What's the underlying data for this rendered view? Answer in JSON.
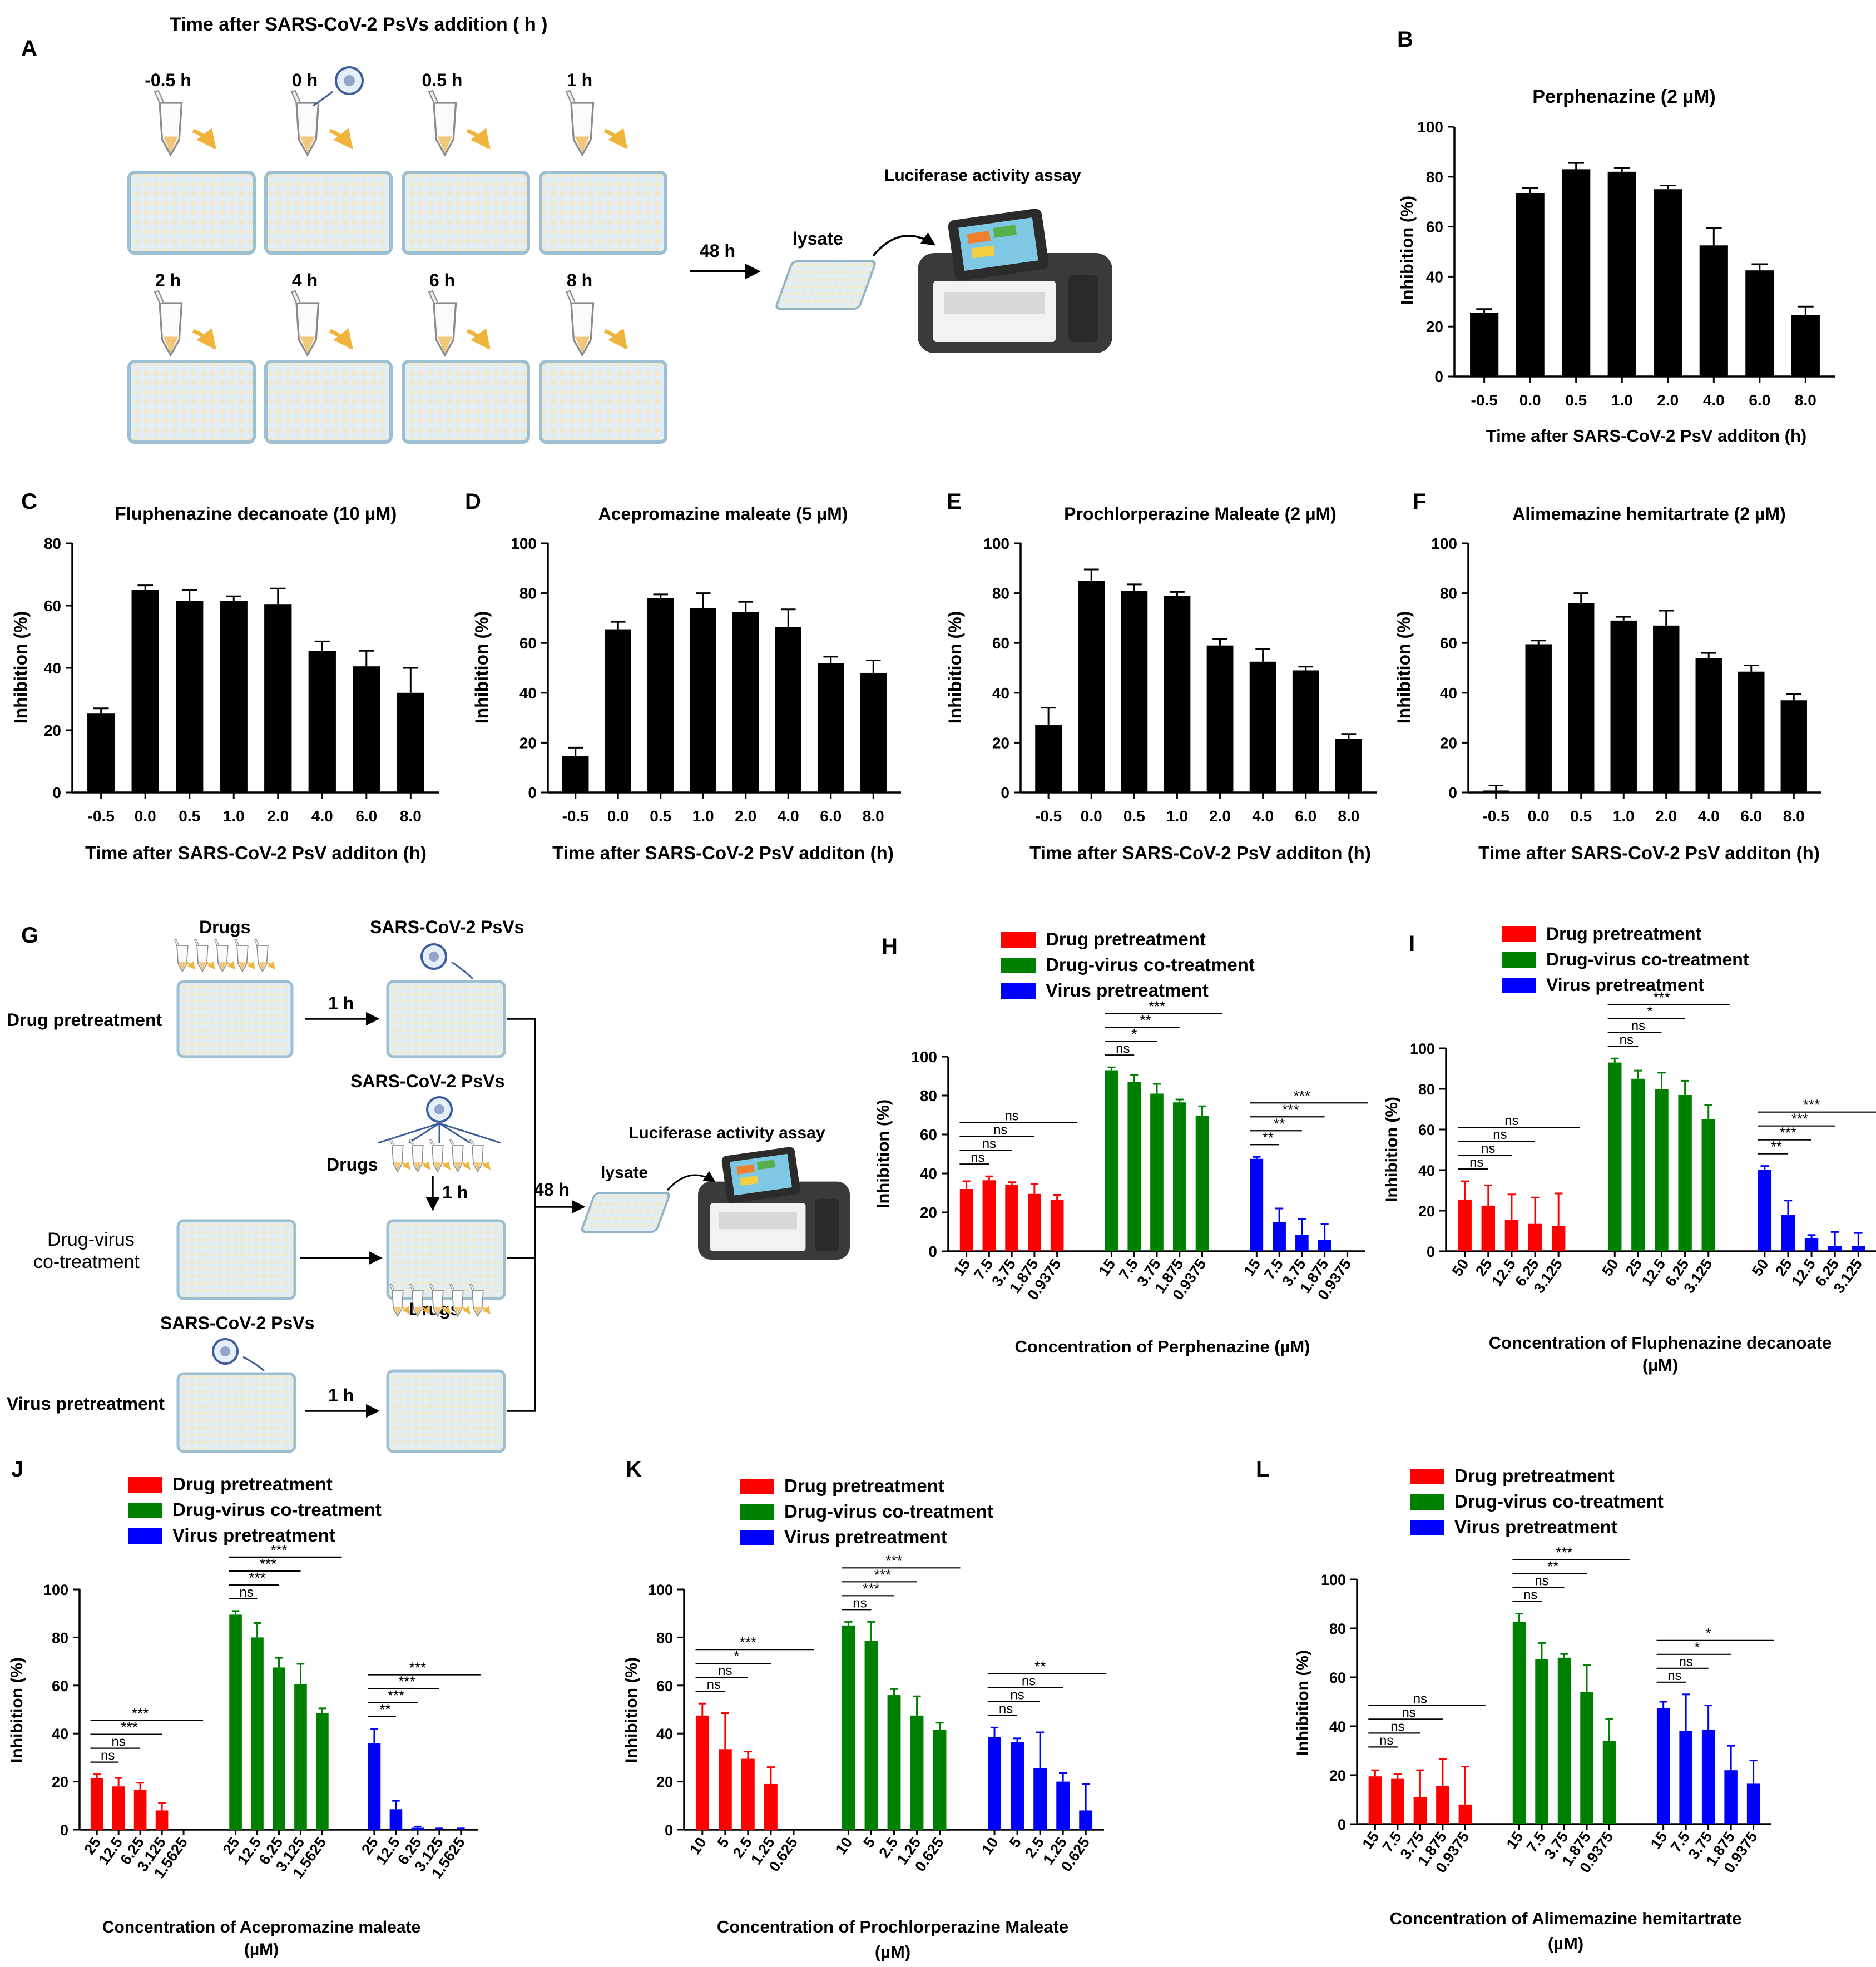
{
  "panel_letters": {
    "A": "A",
    "B": "B",
    "C": "C",
    "D": "D",
    "E": "E",
    "F": "F",
    "G": "G",
    "H": "H",
    "I": "I",
    "J": "J",
    "K": "K",
    "L": "L"
  },
  "schematic_a": {
    "title": "Time after SARS-CoV-2 PsVs addition ( h )",
    "time_labels": [
      "-0.5 h",
      "0 h",
      "0.5 h",
      "1 h",
      "2 h",
      "4 h",
      "6 h",
      "8 h"
    ],
    "arrow_label": "48 h",
    "lysate_label": "lysate",
    "assay_label": "Luciferase activity assay"
  },
  "schematic_g": {
    "drugs_label": "Drugs",
    "psvs_label": "SARS-CoV-2 PsVs",
    "one_hour": "1 h",
    "row_labels": [
      "Drug pretreatment",
      "Drug-virus",
      "co-treatment",
      "Virus pretreatment"
    ],
    "arrow_label": "48 h",
    "lysate_label": "lysate",
    "assay_label": "Luciferase activity assay"
  },
  "colors": {
    "black_bar": "#000000",
    "red": "#ff0000",
    "green": "#008000",
    "blue": "#0000ff",
    "plate": "#dde9f1",
    "tube": "#f3c77a",
    "arrow": "#f0b43c"
  },
  "chart_data": [
    {
      "panel": "B",
      "type": "bar",
      "title": "Perphenazine (2 µM)",
      "xlabel": "Time after SARS-CoV-2 PsV additon (h)",
      "ylabel": "Inhibition (%)",
      "ylim": [
        0,
        100
      ],
      "yticks": [
        0,
        20,
        40,
        60,
        80,
        100
      ],
      "categories": [
        "-0.5",
        "0.0",
        "0.5",
        "1.0",
        "2.0",
        "4.0",
        "6.0",
        "8.0"
      ],
      "values": [
        25.5,
        73.5,
        83,
        82,
        75,
        52.5,
        42.5,
        24.5
      ],
      "errors": [
        1.5,
        2,
        2.5,
        1.5,
        1.5,
        7,
        2.5,
        3.5
      ]
    },
    {
      "panel": "C",
      "type": "bar",
      "title": "Fluphenazine decanoate (10 µM)",
      "xlabel": "Time after SARS-CoV-2 PsV additon (h)",
      "ylabel": "Inhibition (%)",
      "ylim": [
        0,
        80
      ],
      "yticks": [
        0,
        20,
        40,
        60,
        80
      ],
      "categories": [
        "-0.5",
        "0.0",
        "0.5",
        "1.0",
        "2.0",
        "4.0",
        "6.0",
        "8.0"
      ],
      "values": [
        25.5,
        65,
        61.5,
        61.5,
        60.5,
        45.5,
        40.5,
        32
      ],
      "errors": [
        1.5,
        1.5,
        3.5,
        1.5,
        5,
        3,
        5,
        8
      ]
    },
    {
      "panel": "D",
      "type": "bar",
      "title": "Acepromazine maleate (5 µM)",
      "xlabel": "Time after SARS-CoV-2 PsV additon (h)",
      "ylabel": "Inhibition (%)",
      "ylim": [
        0,
        100
      ],
      "yticks": [
        0,
        20,
        40,
        60,
        80,
        100
      ],
      "categories": [
        "-0.5",
        "0.0",
        "0.5",
        "1.0",
        "2.0",
        "4.0",
        "6.0",
        "8.0"
      ],
      "values": [
        14.5,
        65.5,
        78,
        74,
        72.5,
        66.5,
        52,
        48
      ],
      "errors": [
        3.5,
        3,
        1.5,
        6,
        4,
        7,
        2.5,
        5
      ]
    },
    {
      "panel": "E",
      "type": "bar",
      "title": "Prochlorperazine Maleate (2 µM)",
      "xlabel": "Time after SARS-CoV-2 PsV additon (h)",
      "ylabel": "Inhibition (%)",
      "ylim": [
        0,
        100
      ],
      "yticks": [
        0,
        20,
        40,
        60,
        80,
        100
      ],
      "categories": [
        "-0.5",
        "0.0",
        "0.5",
        "1.0",
        "2.0",
        "4.0",
        "6.0",
        "8.0"
      ],
      "values": [
        27,
        85,
        81,
        79,
        59,
        52.5,
        49,
        21.5
      ],
      "errors": [
        7,
        4.5,
        2.5,
        1.5,
        2.5,
        5,
        1.5,
        2
      ]
    },
    {
      "panel": "F",
      "type": "bar",
      "title": "Alimemazine hemitartrate (2 µM)",
      "xlabel": "Time after SARS-CoV-2 PsV additon (h)",
      "ylabel": "Inhibition (%)",
      "ylim": [
        0,
        100
      ],
      "yticks": [
        0,
        20,
        40,
        60,
        80,
        100
      ],
      "categories": [
        "-0.5",
        "0.0",
        "0.5",
        "1.0",
        "2.0",
        "4.0",
        "6.0",
        "8.0"
      ],
      "values": [
        0.8,
        59.5,
        76,
        69,
        67,
        54,
        48.5,
        37
      ],
      "errors": [
        2,
        1.5,
        4,
        1.5,
        6,
        2,
        2.5,
        2.5
      ]
    },
    {
      "panel": "H",
      "type": "bar",
      "xlabel": "Concentration of Perphenazine (µM)",
      "ylabel": "Inhibition (%)",
      "ylim": [
        0,
        100
      ],
      "yticks": [
        0,
        20,
        40,
        60,
        80,
        100
      ],
      "categories": [
        "15",
        "7.5",
        "3.75",
        "1.875",
        "0.9375"
      ],
      "series": [
        {
          "name": "Drug pretreatment",
          "values": [
            32,
            36.5,
            34,
            29.5,
            26.5
          ],
          "errors": [
            4,
            2,
            1.5,
            5,
            2.5
          ]
        },
        {
          "name": "Drug-virus co-treatment",
          "values": [
            93,
            87,
            81,
            76.5,
            69.5
          ],
          "errors": [
            1.5,
            3.5,
            5,
            1.5,
            5
          ]
        },
        {
          "name": "Virus pretreatment",
          "values": [
            47.5,
            15,
            8.5,
            6,
            0
          ],
          "errors": [
            1,
            7,
            8,
            8,
            0
          ]
        }
      ],
      "significance": [
        {
          "group": 0,
          "labels": [
            "ns",
            "ns",
            "ns",
            "ns"
          ]
        },
        {
          "group": 1,
          "labels": [
            "ns",
            "*",
            "**",
            "***"
          ]
        },
        {
          "group": 2,
          "labels": [
            "**",
            "**",
            "***",
            "***"
          ]
        }
      ]
    },
    {
      "panel": "I",
      "type": "bar",
      "xlabel": "Concentration of Fluphenazine decanoate (µM)",
      "ylabel": "Inhibition (%)",
      "ylim": [
        0,
        100
      ],
      "yticks": [
        0,
        20,
        40,
        60,
        80,
        100
      ],
      "categories": [
        "50",
        "25",
        "12.5",
        "6.25",
        "3.125"
      ],
      "series": [
        {
          "name": "Drug pretreatment",
          "values": [
            25.5,
            22.5,
            15.5,
            13.5,
            12.5
          ],
          "errors": [
            9,
            10,
            12.5,
            13,
            16
          ]
        },
        {
          "name": "Drug-virus co-treatment",
          "values": [
            93,
            85,
            80,
            77,
            65
          ],
          "errors": [
            2,
            4,
            8,
            7,
            7
          ]
        },
        {
          "name": "Virus pretreatment",
          "values": [
            40,
            18,
            6.5,
            2.5,
            2.5
          ],
          "errors": [
            2,
            7,
            1.5,
            7,
            6.5
          ]
        }
      ],
      "significance": [
        {
          "group": 0,
          "labels": [
            "ns",
            "ns",
            "ns",
            "ns"
          ]
        },
        {
          "group": 1,
          "labels": [
            "ns",
            "ns",
            "*",
            "***"
          ]
        },
        {
          "group": 2,
          "labels": [
            "**",
            "***",
            "***",
            "***"
          ]
        }
      ]
    },
    {
      "panel": "J",
      "type": "bar",
      "xlabel": "Concentration of Acepromazine maleate (µM)",
      "ylabel": "Inhibition (%)",
      "ylim": [
        0,
        100
      ],
      "yticks": [
        0,
        20,
        40,
        60,
        80,
        100
      ],
      "categories": [
        "25",
        "12.5",
        "6.25",
        "3.125",
        "1.5625"
      ],
      "series": [
        {
          "name": "Drug pretreatment",
          "values": [
            21.5,
            18,
            16.5,
            8,
            0
          ],
          "errors": [
            1.5,
            3.5,
            3,
            3,
            0
          ]
        },
        {
          "name": "Drug-virus co-treatment",
          "values": [
            89.5,
            80,
            67.5,
            60.5,
            48.5
          ],
          "errors": [
            1.5,
            6,
            4,
            8.5,
            2
          ]
        },
        {
          "name": "Virus pretreatment",
          "values": [
            36,
            8.5,
            0.8,
            0,
            0
          ],
          "errors": [
            6,
            3.5,
            0.5,
            0.5,
            0.5
          ]
        }
      ],
      "significance": [
        {
          "group": 0,
          "labels": [
            "ns",
            "ns",
            "***",
            "***"
          ]
        },
        {
          "group": 1,
          "labels": [
            "ns",
            "***",
            "***",
            "***"
          ]
        },
        {
          "group": 2,
          "labels": [
            "**",
            "***",
            "***",
            "***"
          ]
        }
      ]
    },
    {
      "panel": "K",
      "type": "bar",
      "xlabel": "Concentration of Prochlorperazine Maleate (µM)",
      "ylabel": "Inhibition (%)",
      "ylim": [
        0,
        100
      ],
      "yticks": [
        0,
        20,
        40,
        60,
        80,
        100
      ],
      "categories": [
        "10",
        "5",
        "2.5",
        "1.25",
        "0.625"
      ],
      "series": [
        {
          "name": "Drug pretreatment",
          "values": [
            47.5,
            33.5,
            29.5,
            19,
            0
          ],
          "errors": [
            5,
            15,
            3,
            7,
            0
          ]
        },
        {
          "name": "Drug-virus co-treatment",
          "values": [
            85,
            78.5,
            56,
            47.5,
            41.5
          ],
          "errors": [
            1.5,
            8,
            2.5,
            8,
            3
          ]
        },
        {
          "name": "Virus pretreatment",
          "values": [
            38.5,
            36.5,
            25.5,
            20,
            8
          ],
          "errors": [
            4,
            1.5,
            15,
            3.5,
            11
          ]
        }
      ],
      "significance": [
        {
          "group": 0,
          "labels": [
            "ns",
            "ns",
            "*",
            "***"
          ]
        },
        {
          "group": 1,
          "labels": [
            "ns",
            "***",
            "***",
            "***"
          ]
        },
        {
          "group": 2,
          "labels": [
            "ns",
            "ns",
            "ns",
            "**"
          ]
        }
      ]
    },
    {
      "panel": "L",
      "type": "bar",
      "xlabel": "Concentration of Alimemazine hemitartrate (µM)",
      "ylabel": "Inhibition (%)",
      "ylim": [
        0,
        100
      ],
      "yticks": [
        0,
        20,
        40,
        60,
        80,
        100
      ],
      "categories": [
        "15",
        "7.5",
        "3.75",
        "1.875",
        "0.9375"
      ],
      "series": [
        {
          "name": "Drug pretreatment",
          "values": [
            19.5,
            18.5,
            11,
            15.5,
            8
          ],
          "errors": [
            2.5,
            2,
            11,
            11,
            15.5
          ]
        },
        {
          "name": "Drug-virus co-treatment",
          "values": [
            82.5,
            67.5,
            68,
            54,
            34
          ],
          "errors": [
            3.5,
            6.5,
            1.5,
            11,
            9
          ]
        },
        {
          "name": "Virus pretreatment",
          "values": [
            47.5,
            38,
            38.5,
            22,
            16.5
          ],
          "errors": [
            2.5,
            15,
            10,
            10,
            9.5
          ]
        }
      ],
      "significance": [
        {
          "group": 0,
          "labels": [
            "ns",
            "ns",
            "ns",
            "ns"
          ]
        },
        {
          "group": 1,
          "labels": [
            "ns",
            "ns",
            "**",
            "***"
          ]
        },
        {
          "group": 2,
          "labels": [
            "ns",
            "ns",
            "*",
            "*"
          ]
        }
      ]
    }
  ]
}
